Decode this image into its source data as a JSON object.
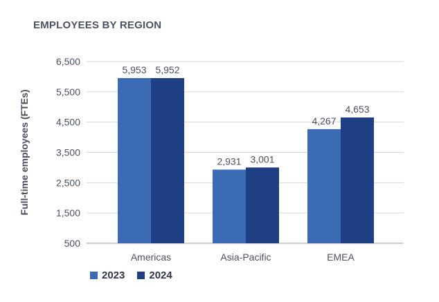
{
  "chart_data": {
    "type": "bar",
    "title": "EMPLOYEES BY REGION",
    "ylabel": "Full-time employees (FTEs)",
    "xlabel": "",
    "categories": [
      "Americas",
      "Asia-Pacific",
      "EMEA"
    ],
    "series": [
      {
        "name": "2023",
        "values": [
          5953,
          2931,
          4267
        ],
        "labels": [
          "5,953",
          "2,931",
          "4,267"
        ],
        "color": "#3b6bb5"
      },
      {
        "name": "2024",
        "values": [
          5952,
          3001,
          4653
        ],
        "labels": [
          "5,952",
          "3,001",
          "4,653"
        ],
        "color": "#1f3f85"
      }
    ],
    "ylim": [
      500,
      6500
    ],
    "yticks": [
      500,
      1500,
      2500,
      3500,
      4500,
      5500,
      6500
    ],
    "ytick_labels": [
      "500",
      "1,500",
      "2,500",
      "3,500",
      "4,500",
      "5,500",
      "6,500"
    ],
    "grid": true,
    "legend_position": "bottom-left"
  }
}
